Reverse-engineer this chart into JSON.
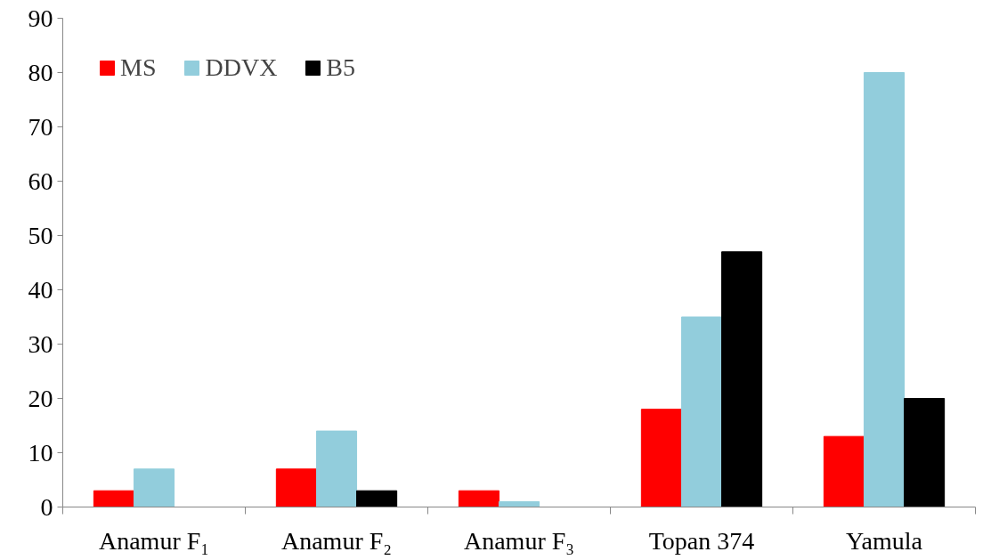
{
  "chart_data": {
    "type": "bar",
    "categories": [
      "Anamur F₁",
      "Anamur F₂",
      "Anamur F₃",
      "Topan 374",
      "Yamula"
    ],
    "series": [
      {
        "name": "MS",
        "color": "#ff0000",
        "values": [
          3,
          7,
          3,
          18,
          13
        ]
      },
      {
        "name": "DDVX",
        "color": "#92cddc",
        "values": [
          7,
          14,
          1,
          35,
          80
        ]
      },
      {
        "name": "B5",
        "color": "#000000",
        "values": [
          0,
          3,
          0,
          47,
          20
        ]
      }
    ],
    "ylim": [
      0,
      90
    ],
    "yticks": [
      0,
      10,
      20,
      30,
      40,
      50,
      60,
      70,
      80,
      90
    ],
    "grid": false,
    "legend": "top left"
  }
}
